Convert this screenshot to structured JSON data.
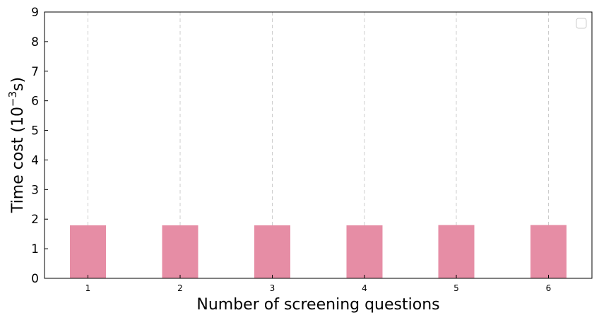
{
  "chart_data": {
    "type": "bar",
    "categories": [
      "1",
      "2",
      "3",
      "4",
      "5",
      "6"
    ],
    "values": [
      1.79,
      1.79,
      1.79,
      1.79,
      1.8,
      1.8
    ],
    "xlabel": "Number of screening questions",
    "ylabel_prefix": "Time cost (10",
    "ylabel_exp": "−3",
    "ylabel_suffix": "s)",
    "ylim": [
      0,
      9
    ],
    "yticks": [
      "0",
      "1",
      "2",
      "3",
      "4",
      "5",
      "6",
      "7",
      "8",
      "9"
    ],
    "grid": "vertical dashed",
    "legend": "top-right (empty)",
    "bar_color": "#e68da5"
  }
}
